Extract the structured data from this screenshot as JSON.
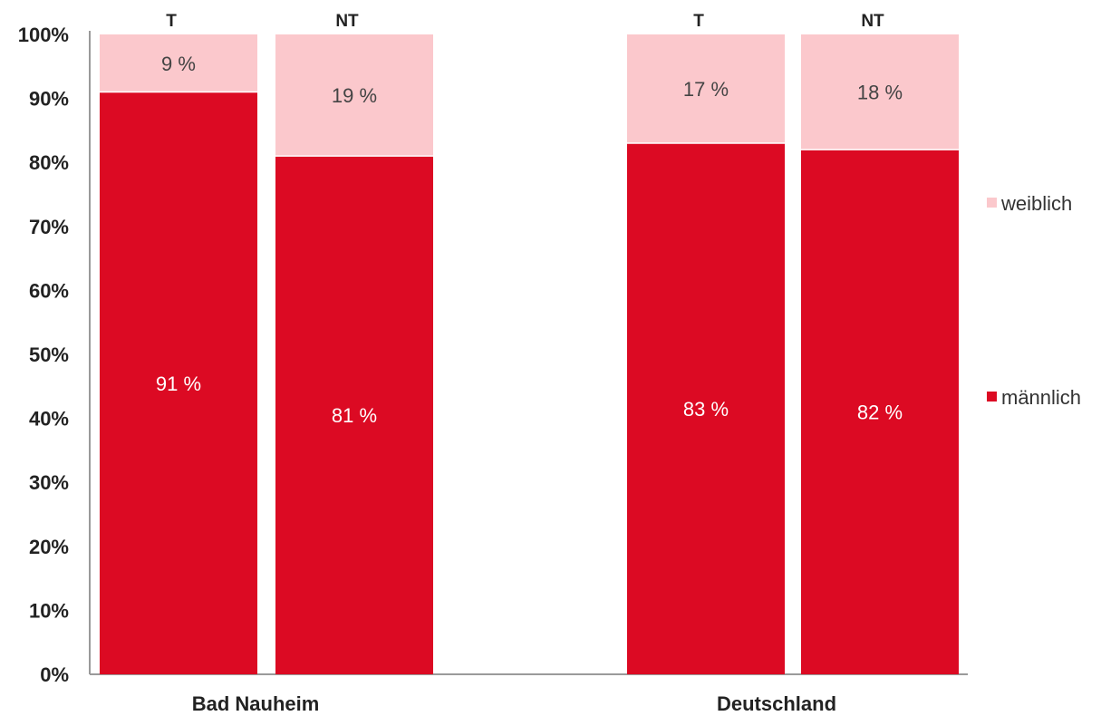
{
  "chart_data": {
    "type": "bar",
    "stacked": true,
    "percent_stacked": true,
    "groups": [
      {
        "label": "Bad Nauheim",
        "bars": [
          {
            "label": "T",
            "values": {
              "männlich": 91,
              "weiblich": 9
            },
            "value_labels": {
              "männlich": "91 %",
              "weiblich": "9 %"
            }
          },
          {
            "label": "NT",
            "values": {
              "männlich": 81,
              "weiblich": 19
            },
            "value_labels": {
              "männlich": "81 %",
              "weiblich": "19 %"
            }
          }
        ]
      },
      {
        "label": "Deutschland",
        "bars": [
          {
            "label": "T",
            "values": {
              "männlich": 83,
              "weiblich": 17
            },
            "value_labels": {
              "männlich": "83 %",
              "weiblich": "17 %"
            }
          },
          {
            "label": "NT",
            "values": {
              "männlich": 82,
              "weiblich": 18
            },
            "value_labels": {
              "männlich": "82 %",
              "weiblich": "18 %"
            }
          }
        ]
      }
    ],
    "series": [
      {
        "name": "männlich",
        "color": "#dc0a23",
        "label_color": "#ffffff"
      },
      {
        "name": "weiblich",
        "color": "#fbc8cc",
        "label_color": "#444444"
      }
    ],
    "legend": {
      "placement": "right",
      "order": [
        "weiblich",
        "männlich"
      ]
    },
    "y_ticks": [
      "0%",
      "10%",
      "20%",
      "30%",
      "40%",
      "50%",
      "60%",
      "70%",
      "80%",
      "90%",
      "100%"
    ],
    "ylim": [
      0,
      100
    ],
    "grid": false
  }
}
